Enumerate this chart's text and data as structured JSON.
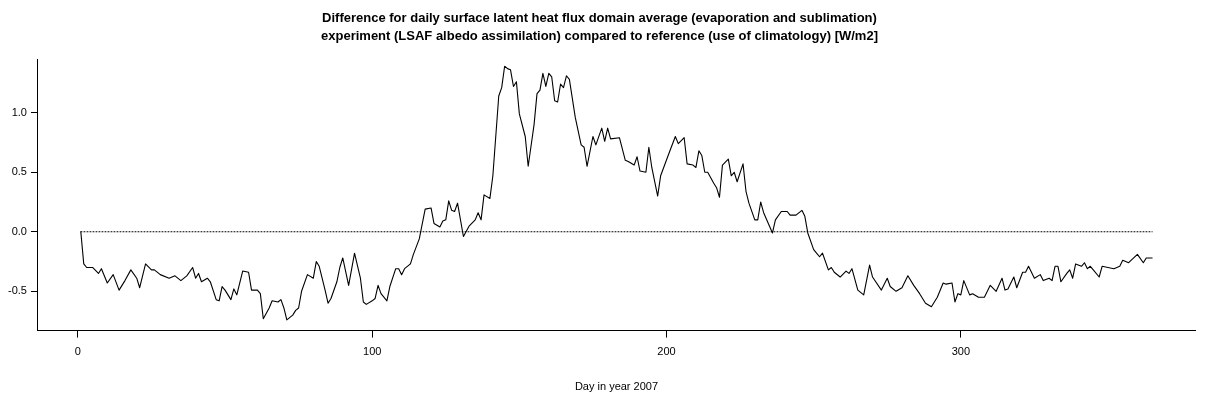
{
  "chart_data": {
    "type": "line",
    "title": "Difference for daily surface latent heat flux domain average (evaporation and sublimation)\nexperiment (LSAF albedo assimilation) compared to reference (use of climatology) [W/m2]",
    "xlabel": "Day in year 2007",
    "xlim": [
      -13.56,
      379.56
    ],
    "ylim": [
      -0.83,
      1.45
    ],
    "xticks": [
      0,
      100,
      200,
      300
    ],
    "yticks": [
      {
        "value": -0.5,
        "label": "-0.5"
      },
      {
        "value": 0,
        "label": "0.0"
      },
      {
        "value": 0.5,
        "label": "0.5"
      },
      {
        "value": 1,
        "label": "1.0"
      }
    ],
    "grid": false,
    "legend": false,
    "marker": "none",
    "series": [
      {
        "color": "#000000",
        "line_style": "solid",
        "x": [
          1,
          2,
          3,
          5,
          7,
          8,
          10,
          12,
          14,
          16,
          18,
          20,
          21,
          23,
          25,
          26,
          28,
          31,
          33,
          35,
          37,
          39,
          40,
          41,
          42,
          44,
          45,
          47,
          48,
          49,
          50,
          52,
          53,
          54,
          56,
          58,
          59,
          61,
          62,
          63,
          65,
          66,
          68,
          69,
          70,
          71,
          73,
          74,
          75,
          76,
          78,
          80,
          81,
          82,
          84,
          85,
          86,
          88,
          89,
          90,
          92,
          94,
          96,
          97,
          98,
          100,
          101,
          102,
          103,
          105,
          106,
          108,
          109,
          110,
          111,
          113,
          114,
          116,
          118,
          120,
          121,
          123,
          124,
          125,
          126,
          127,
          128,
          129,
          131,
          133,
          135,
          136,
          137,
          138,
          140,
          141,
          143,
          144,
          145,
          146,
          147,
          148,
          149,
          150,
          152,
          153,
          155,
          156,
          157,
          158,
          159,
          160,
          161,
          162,
          163,
          164,
          165,
          166,
          167,
          169,
          171,
          172,
          173,
          175,
          176,
          178,
          179,
          180,
          181,
          184,
          186,
          187,
          189,
          190,
          191,
          193,
          194,
          195,
          197,
          198,
          201,
          203,
          204,
          206,
          207,
          209,
          210,
          211,
          212,
          213,
          214,
          216,
          217,
          218,
          219,
          221,
          222,
          223,
          224,
          226,
          227,
          228,
          230,
          231,
          232,
          233,
          236,
          237,
          239,
          241,
          242,
          244,
          246,
          247,
          248,
          250,
          252,
          253,
          255,
          256,
          257,
          259,
          261,
          262,
          263,
          265,
          267,
          269,
          270,
          273,
          275,
          276,
          278,
          280,
          282,
          284,
          286,
          288,
          290,
          292,
          294,
          295,
          297,
          298,
          299,
          300,
          301,
          303,
          304,
          306,
          308,
          310,
          312,
          314,
          315,
          316,
          318,
          319,
          321,
          322,
          323,
          325,
          327,
          328,
          330,
          331,
          332,
          333,
          334,
          336,
          337,
          338,
          339,
          341,
          342,
          343,
          344,
          345,
          347,
          348,
          352,
          354,
          355,
          357,
          360,
          362,
          363,
          365
        ],
        "values": [
          0,
          -0.27,
          -0.3,
          -0.3,
          -0.35,
          -0.31,
          -0.43,
          -0.36,
          -0.49,
          -0.41,
          -0.32,
          -0.39,
          -0.47,
          -0.27,
          -0.32,
          -0.32,
          -0.36,
          -0.39,
          -0.37,
          -0.41,
          -0.37,
          -0.3,
          -0.39,
          -0.35,
          -0.42,
          -0.39,
          -0.42,
          -0.57,
          -0.58,
          -0.46,
          -0.49,
          -0.57,
          -0.48,
          -0.53,
          -0.33,
          -0.34,
          -0.49,
          -0.49,
          -0.52,
          -0.73,
          -0.64,
          -0.58,
          -0.59,
          -0.57,
          -0.64,
          -0.74,
          -0.7,
          -0.66,
          -0.64,
          -0.5,
          -0.36,
          -0.39,
          -0.25,
          -0.29,
          -0.49,
          -0.6,
          -0.56,
          -0.42,
          -0.3,
          -0.22,
          -0.45,
          -0.18,
          -0.39,
          -0.59,
          -0.61,
          -0.58,
          -0.56,
          -0.45,
          -0.52,
          -0.58,
          -0.46,
          -0.31,
          -0.31,
          -0.36,
          -0.31,
          -0.27,
          -0.19,
          -0.06,
          0.19,
          0.2,
          0.07,
          0.04,
          0.09,
          0.1,
          0.26,
          0.18,
          0.17,
          0.24,
          -0.04,
          0.05,
          0.1,
          0.16,
          0.1,
          0.31,
          0.28,
          0.47,
          1.14,
          1.21,
          1.39,
          1.37,
          1.36,
          1.22,
          1.26,
          0.99,
          0.8,
          0.55,
          0.9,
          1.16,
          1.19,
          1.33,
          1.22,
          1.33,
          1.3,
          1.1,
          1.09,
          1.24,
          1.21,
          1.31,
          1.28,
          0.96,
          0.73,
          0.71,
          0.55,
          0.8,
          0.73,
          0.87,
          0.76,
          0.87,
          0.78,
          0.79,
          0.6,
          0.59,
          0.56,
          0.63,
          0.51,
          0.5,
          0.71,
          0.54,
          0.3,
          0.47,
          0.67,
          0.8,
          0.74,
          0.79,
          0.57,
          0.56,
          0.54,
          0.68,
          0.64,
          0.5,
          0.5,
          0.41,
          0.37,
          0.29,
          0.56,
          0.61,
          0.47,
          0.5,
          0.42,
          0.57,
          0.34,
          0.24,
          0.1,
          0.1,
          0.25,
          0.16,
          -0.01,
          0.1,
          0.17,
          0.17,
          0.14,
          0.14,
          0.18,
          0.13,
          -0.01,
          -0.15,
          -0.21,
          -0.18,
          -0.32,
          -0.3,
          -0.34,
          -0.38,
          -0.33,
          -0.35,
          -0.31,
          -0.49,
          -0.53,
          -0.28,
          -0.38,
          -0.49,
          -0.39,
          -0.46,
          -0.5,
          -0.47,
          -0.37,
          -0.45,
          -0.52,
          -0.6,
          -0.63,
          -0.55,
          -0.43,
          -0.44,
          -0.43,
          -0.59,
          -0.52,
          -0.53,
          -0.41,
          -0.53,
          -0.52,
          -0.55,
          -0.55,
          -0.45,
          -0.5,
          -0.39,
          -0.49,
          -0.48,
          -0.38,
          -0.47,
          -0.34,
          -0.34,
          -0.29,
          -0.39,
          -0.36,
          -0.41,
          -0.39,
          -0.41,
          -0.29,
          -0.29,
          -0.42,
          -0.35,
          -0.32,
          -0.39,
          -0.27,
          -0.29,
          -0.26,
          -0.31,
          -0.29,
          -0.32,
          -0.38,
          -0.29,
          -0.31,
          -0.29,
          -0.24,
          -0.26,
          -0.19,
          -0.26,
          -0.22,
          -0.22
        ]
      },
      {
        "color": "#000000",
        "line_style": "dotted",
        "x": [
          1,
          365
        ],
        "values": [
          0,
          0
        ]
      }
    ]
  }
}
